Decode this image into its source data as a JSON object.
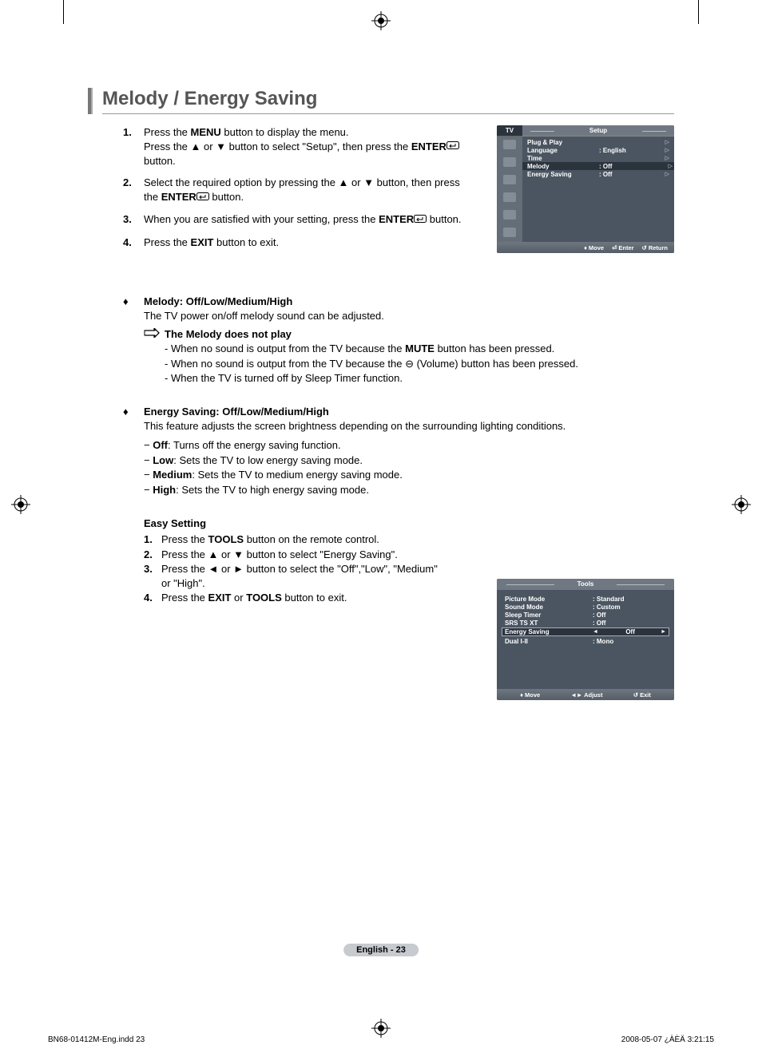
{
  "title": "Melody / Energy Saving",
  "steps": [
    {
      "num": "1.",
      "html": "Press the <b>MENU</b> button to display the menu.<br>Press the ▲ or ▼ button to select \"Setup\", then press the <b>ENTER</b>{ENTER} button."
    },
    {
      "num": "2.",
      "html": "Select the required option by pressing the ▲ or ▼ button, then press the <b>ENTER</b>{ENTER} button."
    },
    {
      "num": "3.",
      "html": "When you are satisfied with your setting, press the <b>ENTER</b>{ENTER} button."
    },
    {
      "num": "4.",
      "html": "Press the <b>EXIT</b> button to exit."
    }
  ],
  "melody": {
    "title": "Melody: Off/Low/Medium/High",
    "desc": "The TV power on/off melody sound can be adjusted.",
    "note_title": "The Melody does not play",
    "notes": [
      "- When no sound is output from the TV because the <b>MUTE</b> button has been pressed.",
      "- When no sound is output from the TV because the ⊖ (Volume) button has been pressed.",
      "- When the TV is turned off by Sleep Timer function."
    ]
  },
  "energy": {
    "title": "Energy Saving: Off/Low/Medium/High",
    "desc": "This feature adjusts the screen brightness depending on the surrounding lighting conditions.",
    "opts": [
      "− <b>Off</b>: Turns off the energy saving function.",
      "− <b>Low</b>: Sets the TV to low energy saving mode.",
      "− <b>Medium</b>: Sets the TV to medium energy saving mode.",
      "− <b>High</b>: Sets the TV to high energy saving mode."
    ]
  },
  "easy": {
    "title": "Easy Setting",
    "steps": [
      {
        "num": "1.",
        "html": "Press the <b>TOOLS</b> button on the remote control."
      },
      {
        "num": "2.",
        "html": "Press the ▲ or ▼ button to select \"Energy Saving\"."
      },
      {
        "num": "3.",
        "html": "Press the ◄ or ► button to select the \"Off\",\"Low\", \"Medium\" or \"High\"."
      },
      {
        "num": "4.",
        "html": "Press the <b>EXIT</b> or <b>TOOLS</b> button to exit."
      }
    ]
  },
  "osd_setup": {
    "tv_label": "TV",
    "title": "Setup",
    "rows": [
      {
        "label": "Plug & Play",
        "value": "",
        "tri": true,
        "hl": false
      },
      {
        "label": "Language",
        "value": ": English",
        "tri": true,
        "hl": false
      },
      {
        "label": "Time",
        "value": "",
        "tri": true,
        "hl": false
      },
      {
        "label": "Melody",
        "value": ": Off",
        "tri": true,
        "hl": true
      },
      {
        "label": "Energy Saving",
        "value": ": Off",
        "tri": true,
        "hl": false
      }
    ],
    "footer": {
      "move": "Move",
      "enter": "Enter",
      "return": "Return"
    },
    "colors": {
      "bg": "#4a5561",
      "hl": "#2b333d",
      "header": "#6f7882",
      "icon": "#646e78"
    }
  },
  "osd_tools": {
    "title": "Tools",
    "rows": [
      {
        "label": "Picture Mode",
        "value": ": Standard",
        "sel": false
      },
      {
        "label": "Sound Mode",
        "value": ": Custom",
        "sel": false
      },
      {
        "label": "Sleep Timer",
        "value": ": Off",
        "sel": false
      },
      {
        "label": "SRS TS XT",
        "value": ": Off",
        "sel": false
      },
      {
        "label": "Energy Saving",
        "value": "Off",
        "sel": true
      },
      {
        "label": "Dual I-II",
        "value": ": Mono",
        "sel": false
      }
    ],
    "footer": {
      "move": "Move",
      "adjust": "Adjust",
      "exit": "Exit"
    }
  },
  "page_label": "English - 23",
  "print": {
    "left": "BN68-01412M-Eng.indd   23",
    "right": "2008-05-07   ¿ÀÈÄ 3:21:15"
  }
}
